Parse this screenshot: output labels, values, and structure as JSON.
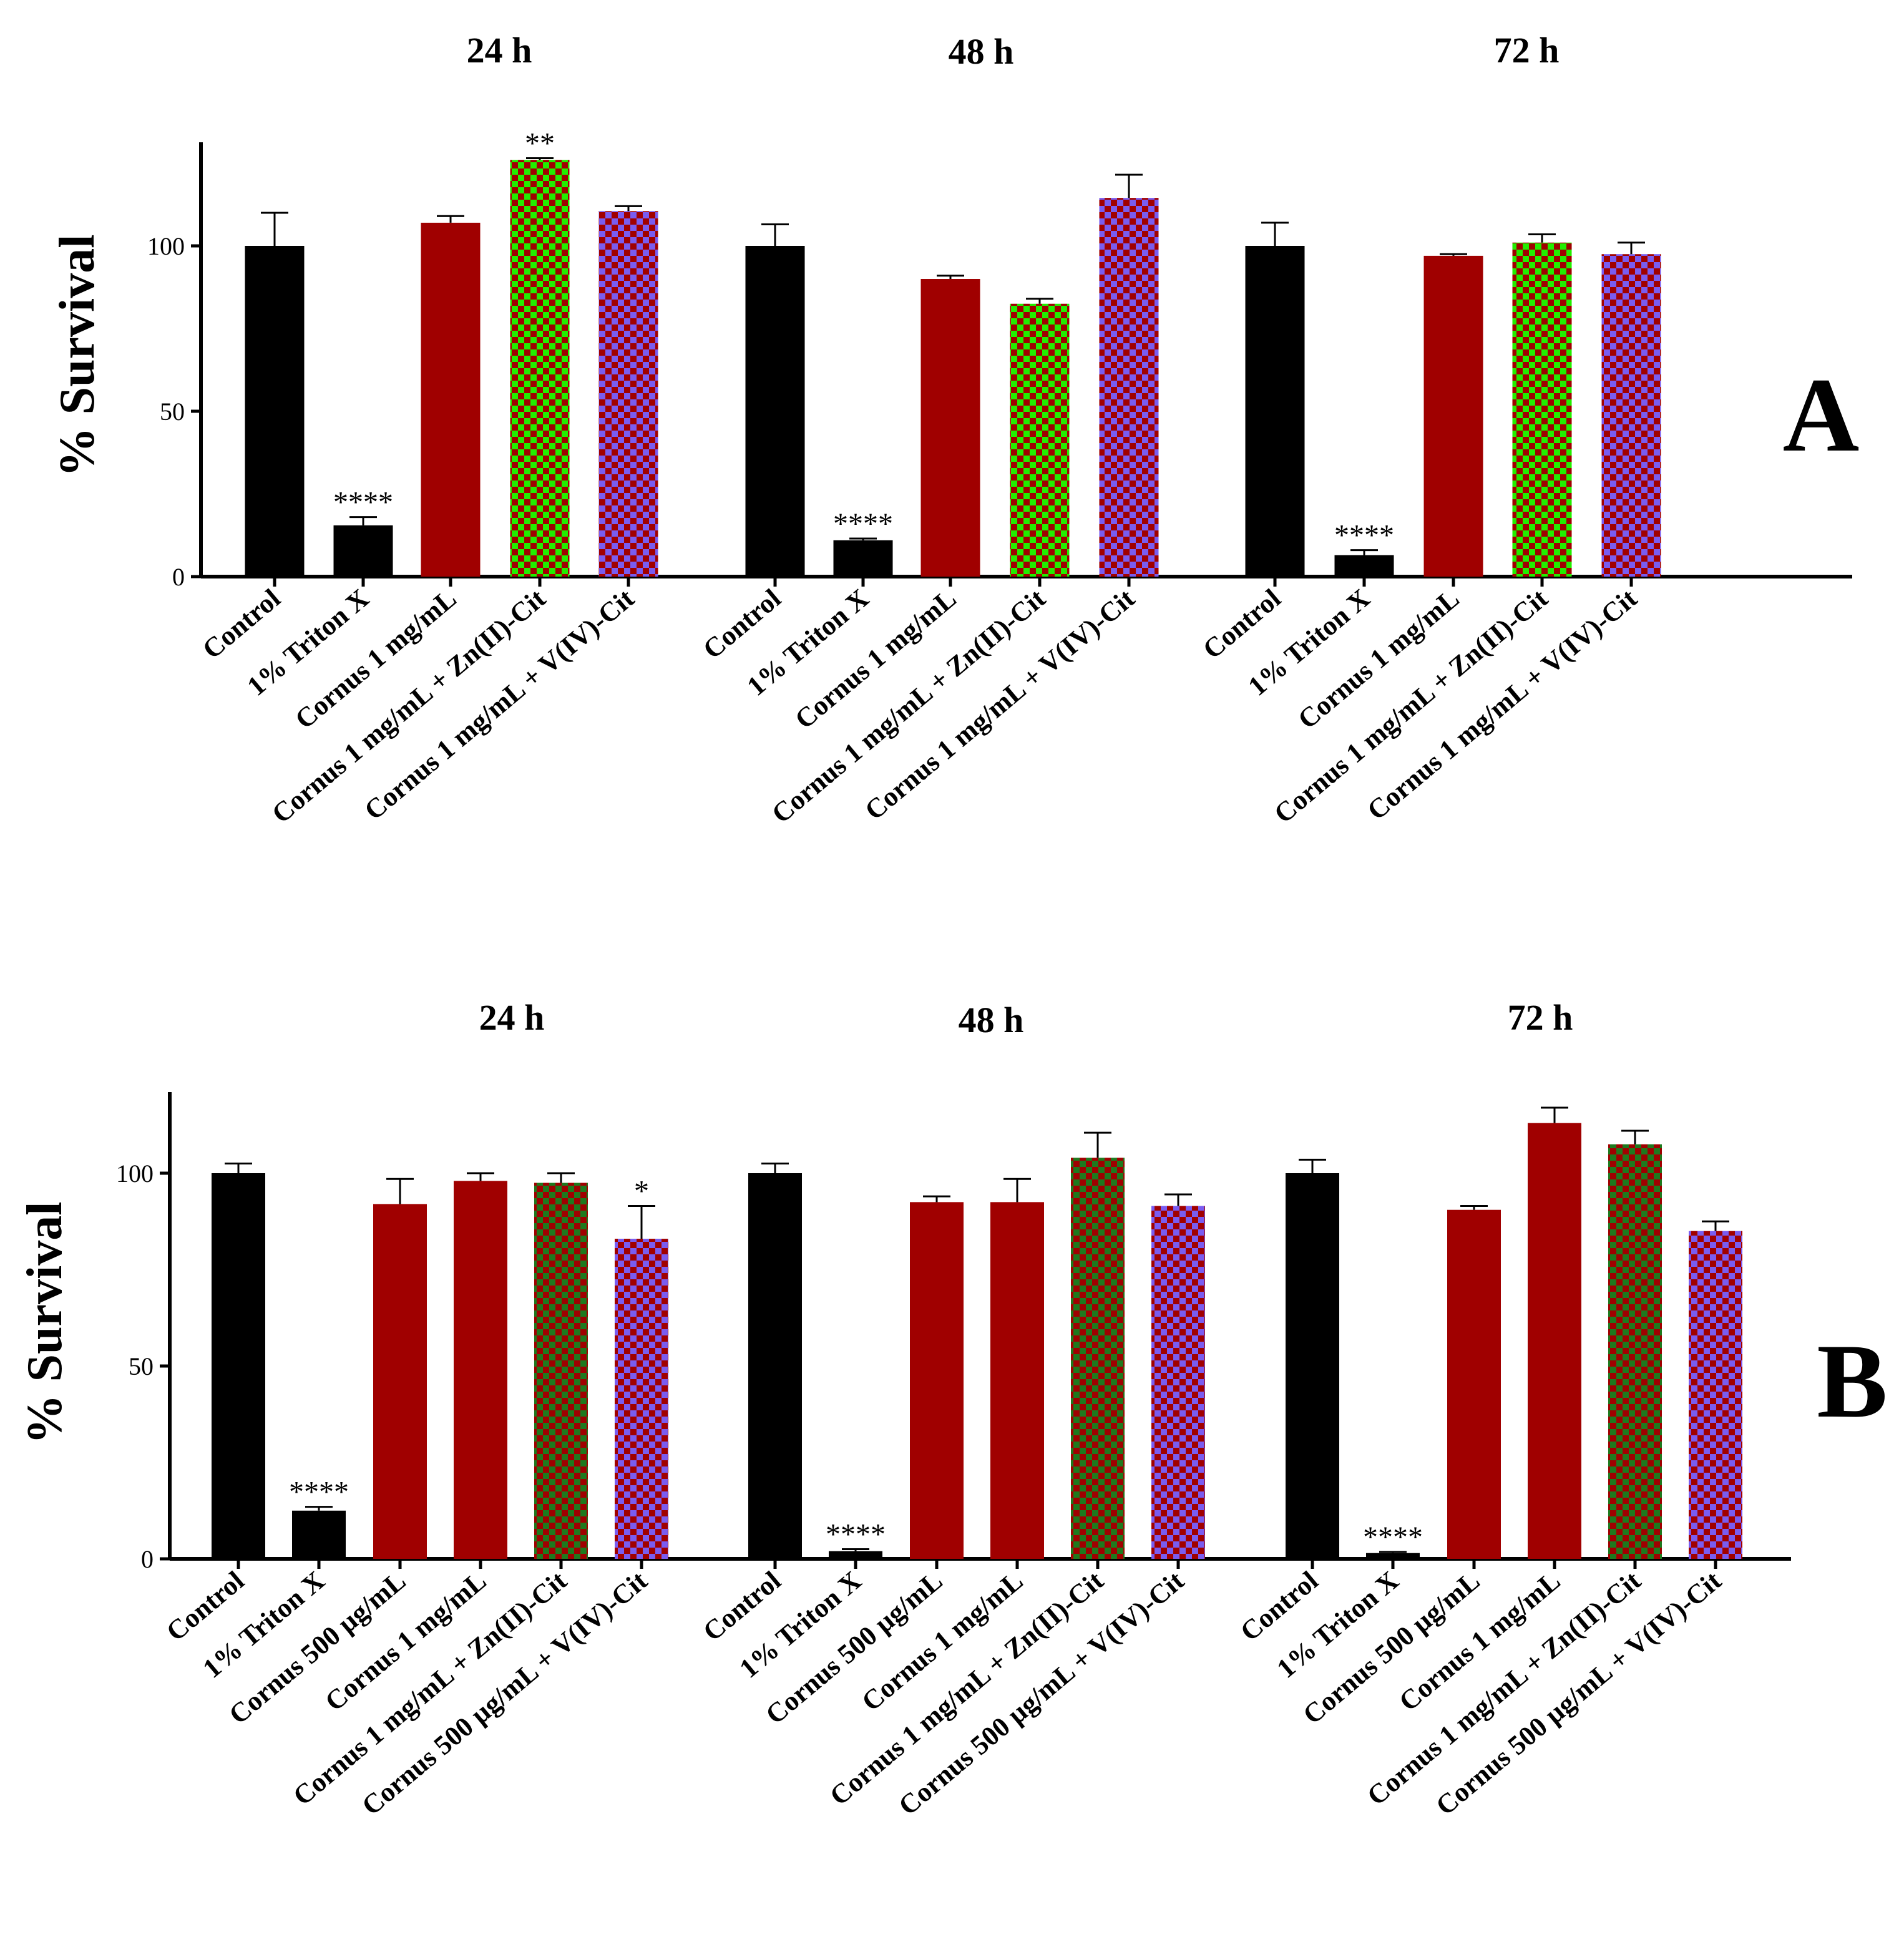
{
  "colors": {
    "black": "#000000",
    "dark_red": "#a00000",
    "green": "#22ee00",
    "dark_green": "#1e7a1e",
    "check_red": "#a00000",
    "blue_violet": "#7a5cf0"
  },
  "chart_data": [
    {
      "type": "bar",
      "panel": "A",
      "ylabel": "% Survival",
      "ylim": [
        0,
        130
      ],
      "yticks": [
        0,
        50,
        100
      ],
      "groups": [
        {
          "title": "24 h",
          "bars": [
            {
              "label": "Control",
              "value": 100,
              "error": 10,
              "fill": "solid_black",
              "sig": ""
            },
            {
              "label": "1% Triton X",
              "value": 15.5,
              "error": 2.5,
              "fill": "solid_black",
              "sig": "****"
            },
            {
              "label": "Cornus 1 mg/mL",
              "value": 107,
              "error": 2,
              "fill": "solid_red",
              "sig": ""
            },
            {
              "label": "Cornus 1 mg/mL + Zn(II)-Cit",
              "value": 126,
              "error": 0.5,
              "fill": "check_green",
              "sig": "**"
            },
            {
              "label": "Cornus 1 mg/mL + V(IV)-Cit",
              "value": 110.5,
              "error": 1.5,
              "fill": "check_blue",
              "sig": ""
            }
          ]
        },
        {
          "title": "48 h",
          "bars": [
            {
              "label": "Control",
              "value": 100,
              "error": 6.5,
              "fill": "solid_black",
              "sig": ""
            },
            {
              "label": "1% Triton X",
              "value": 11,
              "error": 0.5,
              "fill": "solid_black",
              "sig": "****"
            },
            {
              "label": "Cornus 1 mg/mL",
              "value": 90,
              "error": 1,
              "fill": "solid_red",
              "sig": ""
            },
            {
              "label": "Cornus 1 mg/mL + Zn(II)-Cit",
              "value": 82.5,
              "error": 1.5,
              "fill": "check_green",
              "sig": ""
            },
            {
              "label": "Cornus 1 mg/mL + V(IV)-Cit",
              "value": 114.5,
              "error": 7,
              "fill": "check_blue",
              "sig": ""
            }
          ]
        },
        {
          "title": "72 h",
          "bars": [
            {
              "label": "Control",
              "value": 100,
              "error": 7,
              "fill": "solid_black",
              "sig": ""
            },
            {
              "label": "1% Triton X",
              "value": 6.5,
              "error": 1.5,
              "fill": "solid_black",
              "sig": "****"
            },
            {
              "label": "Cornus 1 mg/mL",
              "value": 97,
              "error": 0.5,
              "fill": "solid_red",
              "sig": ""
            },
            {
              "label": "Cornus 1 mg/mL + Zn(II)-Cit",
              "value": 101,
              "error": 2.5,
              "fill": "check_green",
              "sig": ""
            },
            {
              "label": "Cornus 1 mg/mL + V(IV)-Cit",
              "value": 97.5,
              "error": 3.5,
              "fill": "check_blue",
              "sig": ""
            }
          ]
        }
      ]
    },
    {
      "type": "bar",
      "panel": "B",
      "ylabel": "% Survival",
      "ylim": [
        0,
        121
      ],
      "yticks": [
        0,
        50,
        100
      ],
      "groups": [
        {
          "title": "24 h",
          "bars": [
            {
              "label": "Control",
              "value": 100,
              "error": 2.5,
              "fill": "solid_black",
              "sig": ""
            },
            {
              "label": "1% Triton X",
              "value": 12.5,
              "error": 1,
              "fill": "solid_black",
              "sig": "****"
            },
            {
              "label": "Cornus  500 µg/mL",
              "value": 92,
              "error": 6.5,
              "fill": "solid_red",
              "sig": ""
            },
            {
              "label": "Cornus 1 mg/mL",
              "value": 98,
              "error": 2,
              "fill": "solid_red",
              "sig": ""
            },
            {
              "label": "Cornus 1 mg/mL  + Zn(II)-Cit",
              "value": 97.5,
              "error": 2.5,
              "fill": "check_darkgreen",
              "sig": ""
            },
            {
              "label": "Cornus  500 µg/mL + V(IV)-Cit",
              "value": 83,
              "error": 8.5,
              "fill": "check_blue",
              "sig": "*"
            }
          ]
        },
        {
          "title": "48 h",
          "bars": [
            {
              "label": "Control",
              "value": 100,
              "error": 2.5,
              "fill": "solid_black",
              "sig": ""
            },
            {
              "label": "1% Triton X",
              "value": 2,
              "error": 0.5,
              "fill": "solid_black",
              "sig": "****"
            },
            {
              "label": "Cornus  500 µg/mL",
              "value": 92.5,
              "error": 1.5,
              "fill": "solid_red",
              "sig": ""
            },
            {
              "label": "Cornus 1 mg/mL",
              "value": 92.5,
              "error": 6,
              "fill": "solid_red",
              "sig": ""
            },
            {
              "label": "Cornus 1 mg/mL  + Zn(II)-Cit",
              "value": 104,
              "error": 6.5,
              "fill": "check_darkgreen",
              "sig": ""
            },
            {
              "label": "Cornus  500 µg/mL + V(IV)-Cit",
              "value": 91.5,
              "error": 3,
              "fill": "check_blue",
              "sig": ""
            }
          ]
        },
        {
          "title": "72 h",
          "bars": [
            {
              "label": "Control",
              "value": 100,
              "error": 3.5,
              "fill": "solid_black",
              "sig": ""
            },
            {
              "label": "1% Triton X",
              "value": 1.5,
              "error": 0.3,
              "fill": "solid_black",
              "sig": "****"
            },
            {
              "label": "Cornus  500 µg/mL",
              "value": 90.5,
              "error": 1,
              "fill": "solid_red",
              "sig": ""
            },
            {
              "label": "Cornus 1 mg/mL",
              "value": 113,
              "error": 4,
              "fill": "solid_red",
              "sig": ""
            },
            {
              "label": "Cornus 1 mg/mL  + Zn(II)-Cit",
              "value": 107.5,
              "error": 3.5,
              "fill": "check_darkgreen",
              "sig": ""
            },
            {
              "label": "Cornus  500 µg/mL + V(IV)-Cit",
              "value": 85,
              "error": 2.5,
              "fill": "check_blue",
              "sig": ""
            }
          ]
        }
      ]
    }
  ]
}
